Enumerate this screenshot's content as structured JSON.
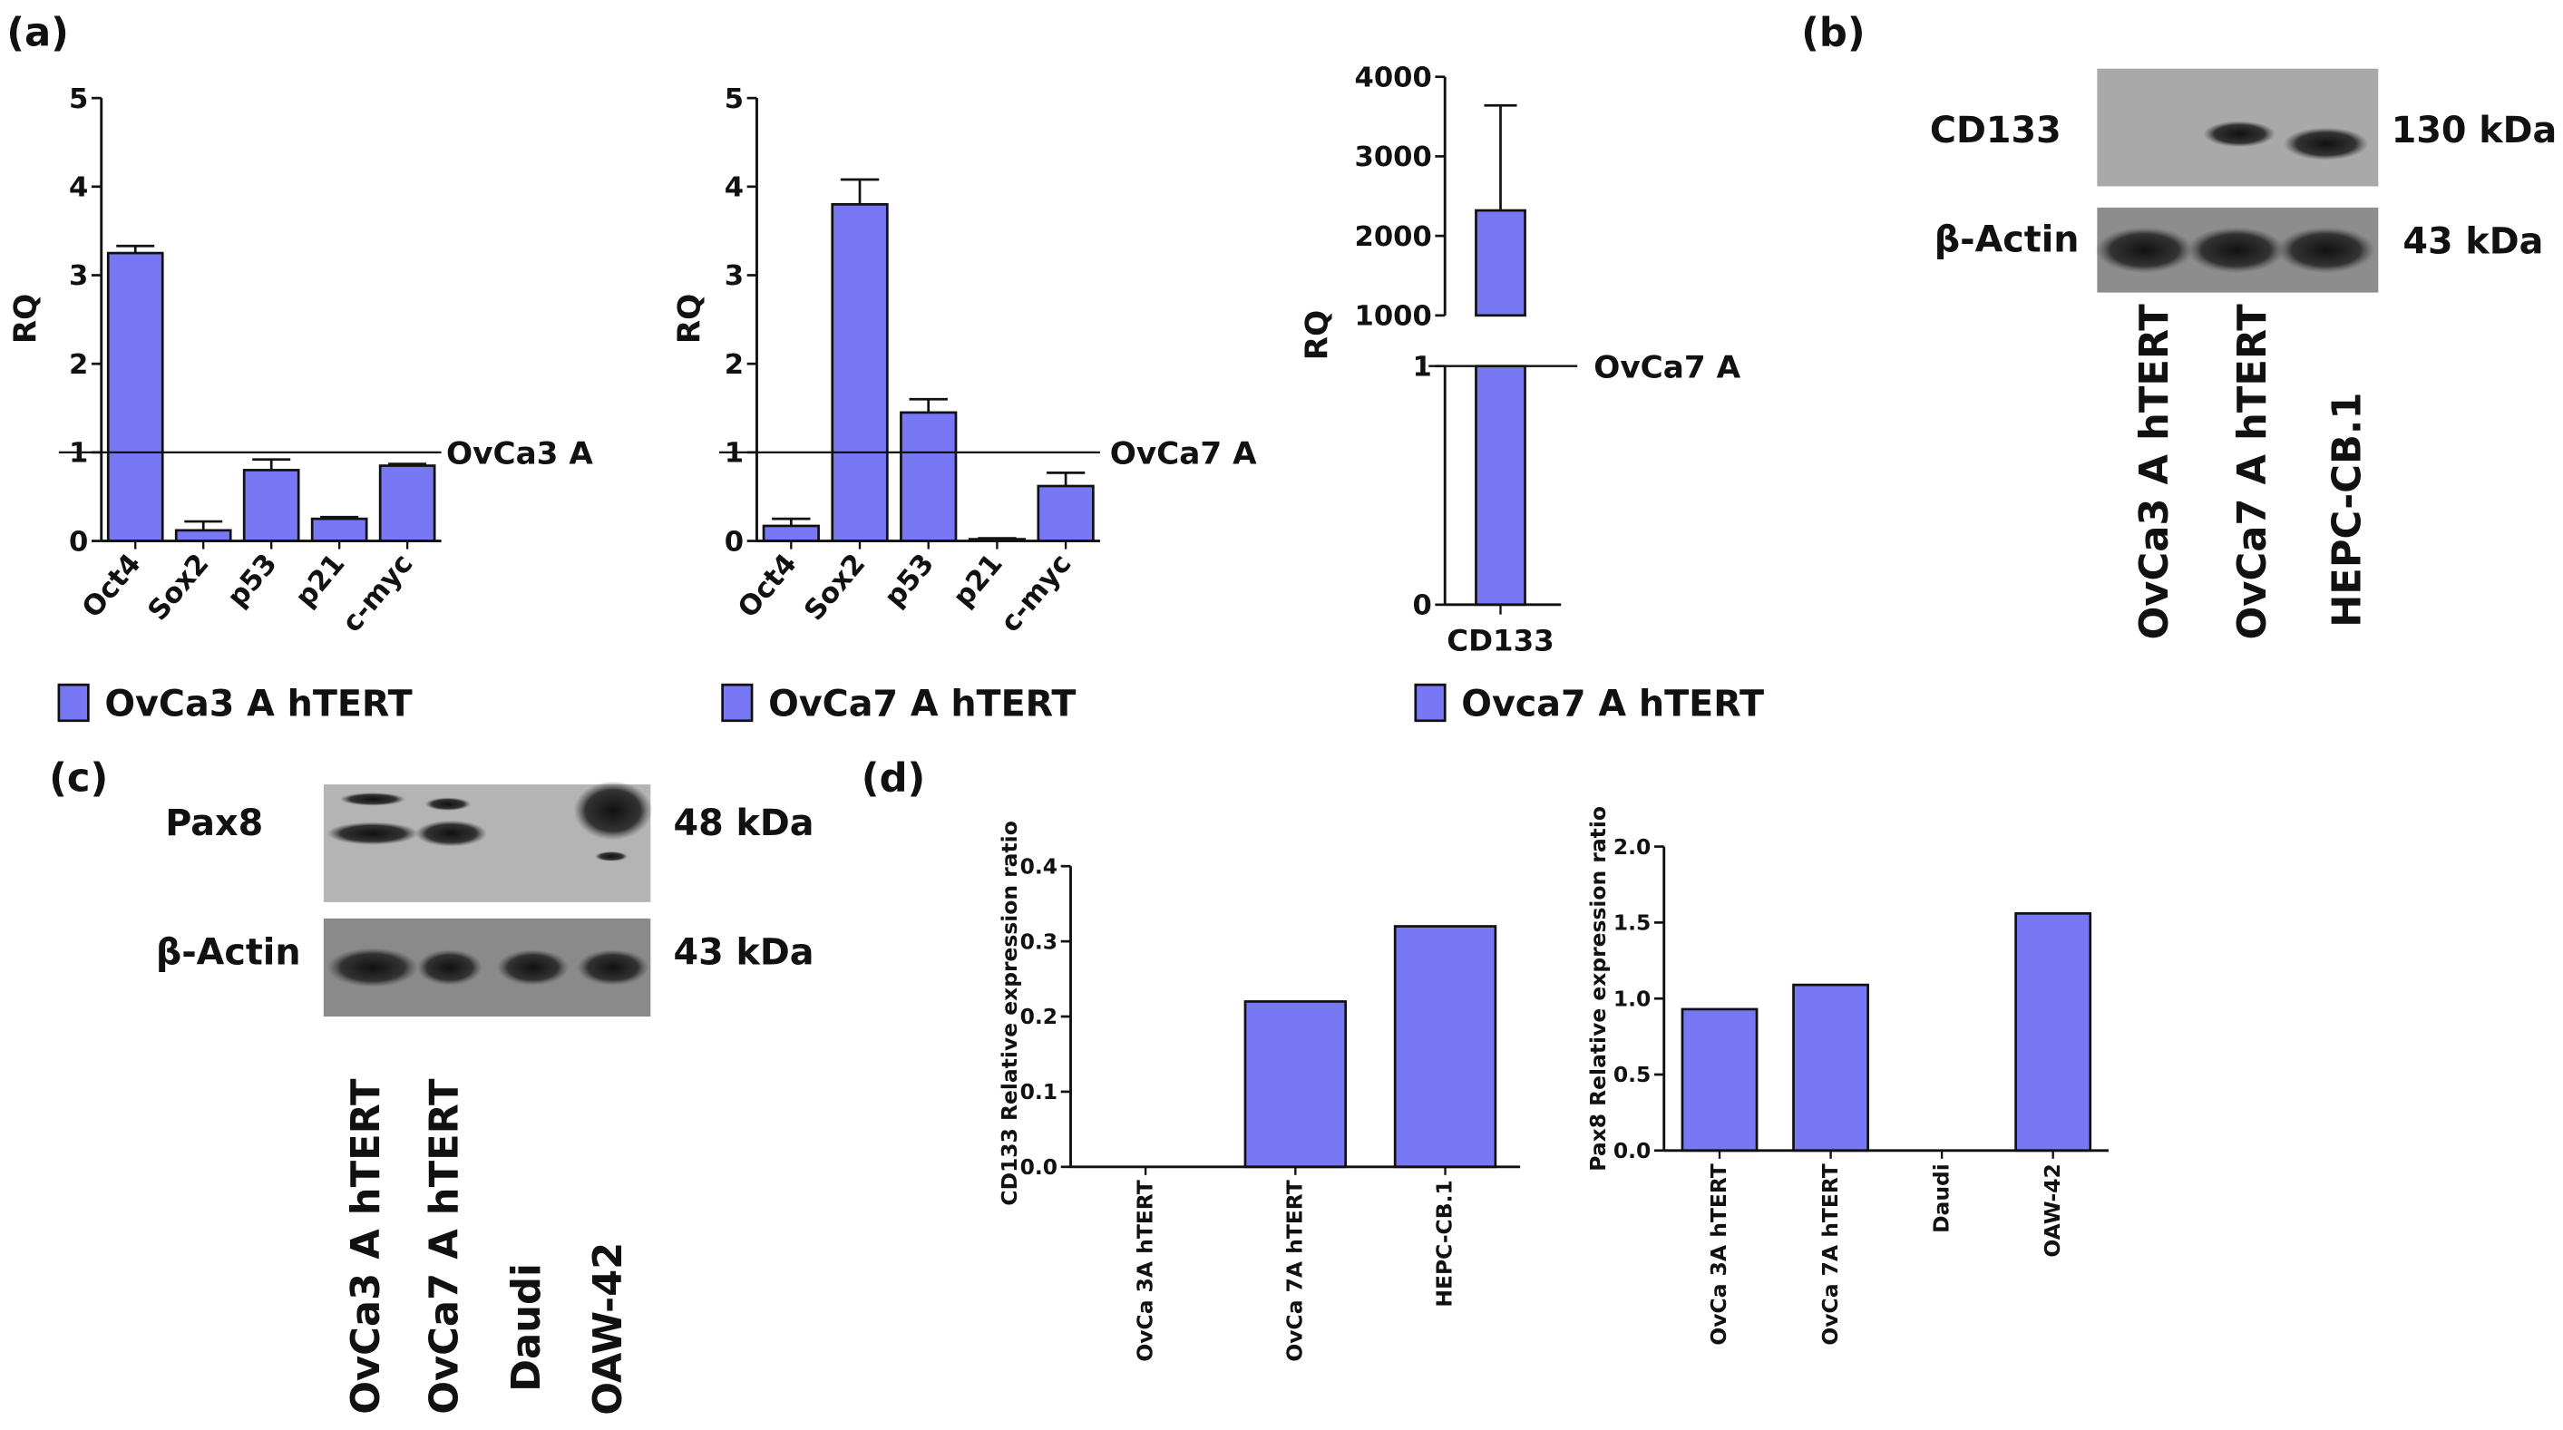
{
  "panels": [
    "(a)",
    "(b)",
    "(c)",
    "(d)"
  ],
  "blot_b": {
    "bands": [
      "CD133",
      "β-Actin"
    ],
    "sizes": [
      "130 kDa",
      "43 kDa"
    ],
    "lanes": [
      "OvCa3 A hTERT",
      "OvCa7 A hTERT",
      "HEPC-CB.1"
    ]
  },
  "blot_c": {
    "bands": [
      "Pax8",
      "β-Actin"
    ],
    "sizes": [
      "48 kDa",
      "43 kDa"
    ],
    "lanes": [
      "OvCa3 A hTERT",
      "OvCa7 A hTERT",
      "Daudi",
      "OAW-42"
    ]
  },
  "chart_data": [
    {
      "type": "bar",
      "ylabel": "RQ",
      "categories": [
        "Oct4",
        "Sox2",
        "p53",
        "p21",
        "c-myc"
      ],
      "series": [
        {
          "name": "OvCa3 A hTERT",
          "color": "#7878f5",
          "values": [
            3.25,
            0.12,
            0.8,
            0.25,
            0.85
          ],
          "errors": [
            0.08,
            0.1,
            0.12,
            0.02,
            0.02
          ]
        }
      ],
      "ylim": [
        0,
        5
      ],
      "yticks": [
        0,
        1,
        2,
        3,
        4,
        5
      ],
      "reference_line": {
        "value": 1,
        "label": "OvCa3 A"
      }
    },
    {
      "type": "bar",
      "ylabel": "RQ",
      "categories": [
        "Oct4",
        "Sox2",
        "p53",
        "p21",
        "c-myc"
      ],
      "series": [
        {
          "name": "OvCa7 A hTERT",
          "color": "#7878f5",
          "values": [
            0.17,
            3.8,
            1.45,
            0.02,
            0.62
          ],
          "errors": [
            0.08,
            0.28,
            0.15,
            0.01,
            0.15
          ]
        }
      ],
      "ylim": [
        0,
        5
      ],
      "yticks": [
        0,
        1,
        2,
        3,
        4,
        5
      ],
      "reference_line": {
        "value": 1,
        "label": "OvCa7 A"
      }
    },
    {
      "type": "broken_bar",
      "ylabel": "RQ",
      "categories": [
        "CD133"
      ],
      "series": [
        {
          "name": "Ovca7 A hTERT",
          "color": "#7878f5",
          "values": [
            2320
          ],
          "errors": [
            1320
          ]
        }
      ],
      "lower": {
        "ylim": [
          0,
          1
        ],
        "yticks": [
          0,
          1
        ]
      },
      "upper": {
        "ylim": [
          1000,
          4000
        ],
        "yticks": [
          1000,
          2000,
          3000,
          4000
        ]
      },
      "reference_line": {
        "value": 1,
        "label": "OvCa7 A"
      }
    },
    {
      "type": "bar",
      "ylabel": "CD133 Relative expression ratio",
      "categories": [
        "OvCa 3A hTERT",
        "OvCa 7A hTERT",
        "HEPC-CB.1"
      ],
      "values": [
        0,
        0.22,
        0.32
      ],
      "color": "#7878f5",
      "ylim": [
        0,
        0.4
      ],
      "yticks": [
        {
          "value": 0,
          "label": "0.0"
        },
        0.1,
        0.2,
        0.3,
        0.4
      ]
    },
    {
      "type": "bar",
      "ylabel": "Pax8 Relative expression ratio",
      "categories": [
        "OvCa 3A hTERT",
        "OvCa 7A hTERT",
        "Daudi",
        "OAW-42"
      ],
      "values": [
        0.93,
        1.09,
        0,
        1.56
      ],
      "color": "#7878f5",
      "ylim": [
        0,
        2
      ],
      "yticks": [
        {
          "value": 0,
          "label": "0.0"
        },
        0.5,
        {
          "value": 1,
          "label": "1.0"
        },
        1.5,
        {
          "value": 2,
          "label": "2.0"
        }
      ]
    }
  ]
}
